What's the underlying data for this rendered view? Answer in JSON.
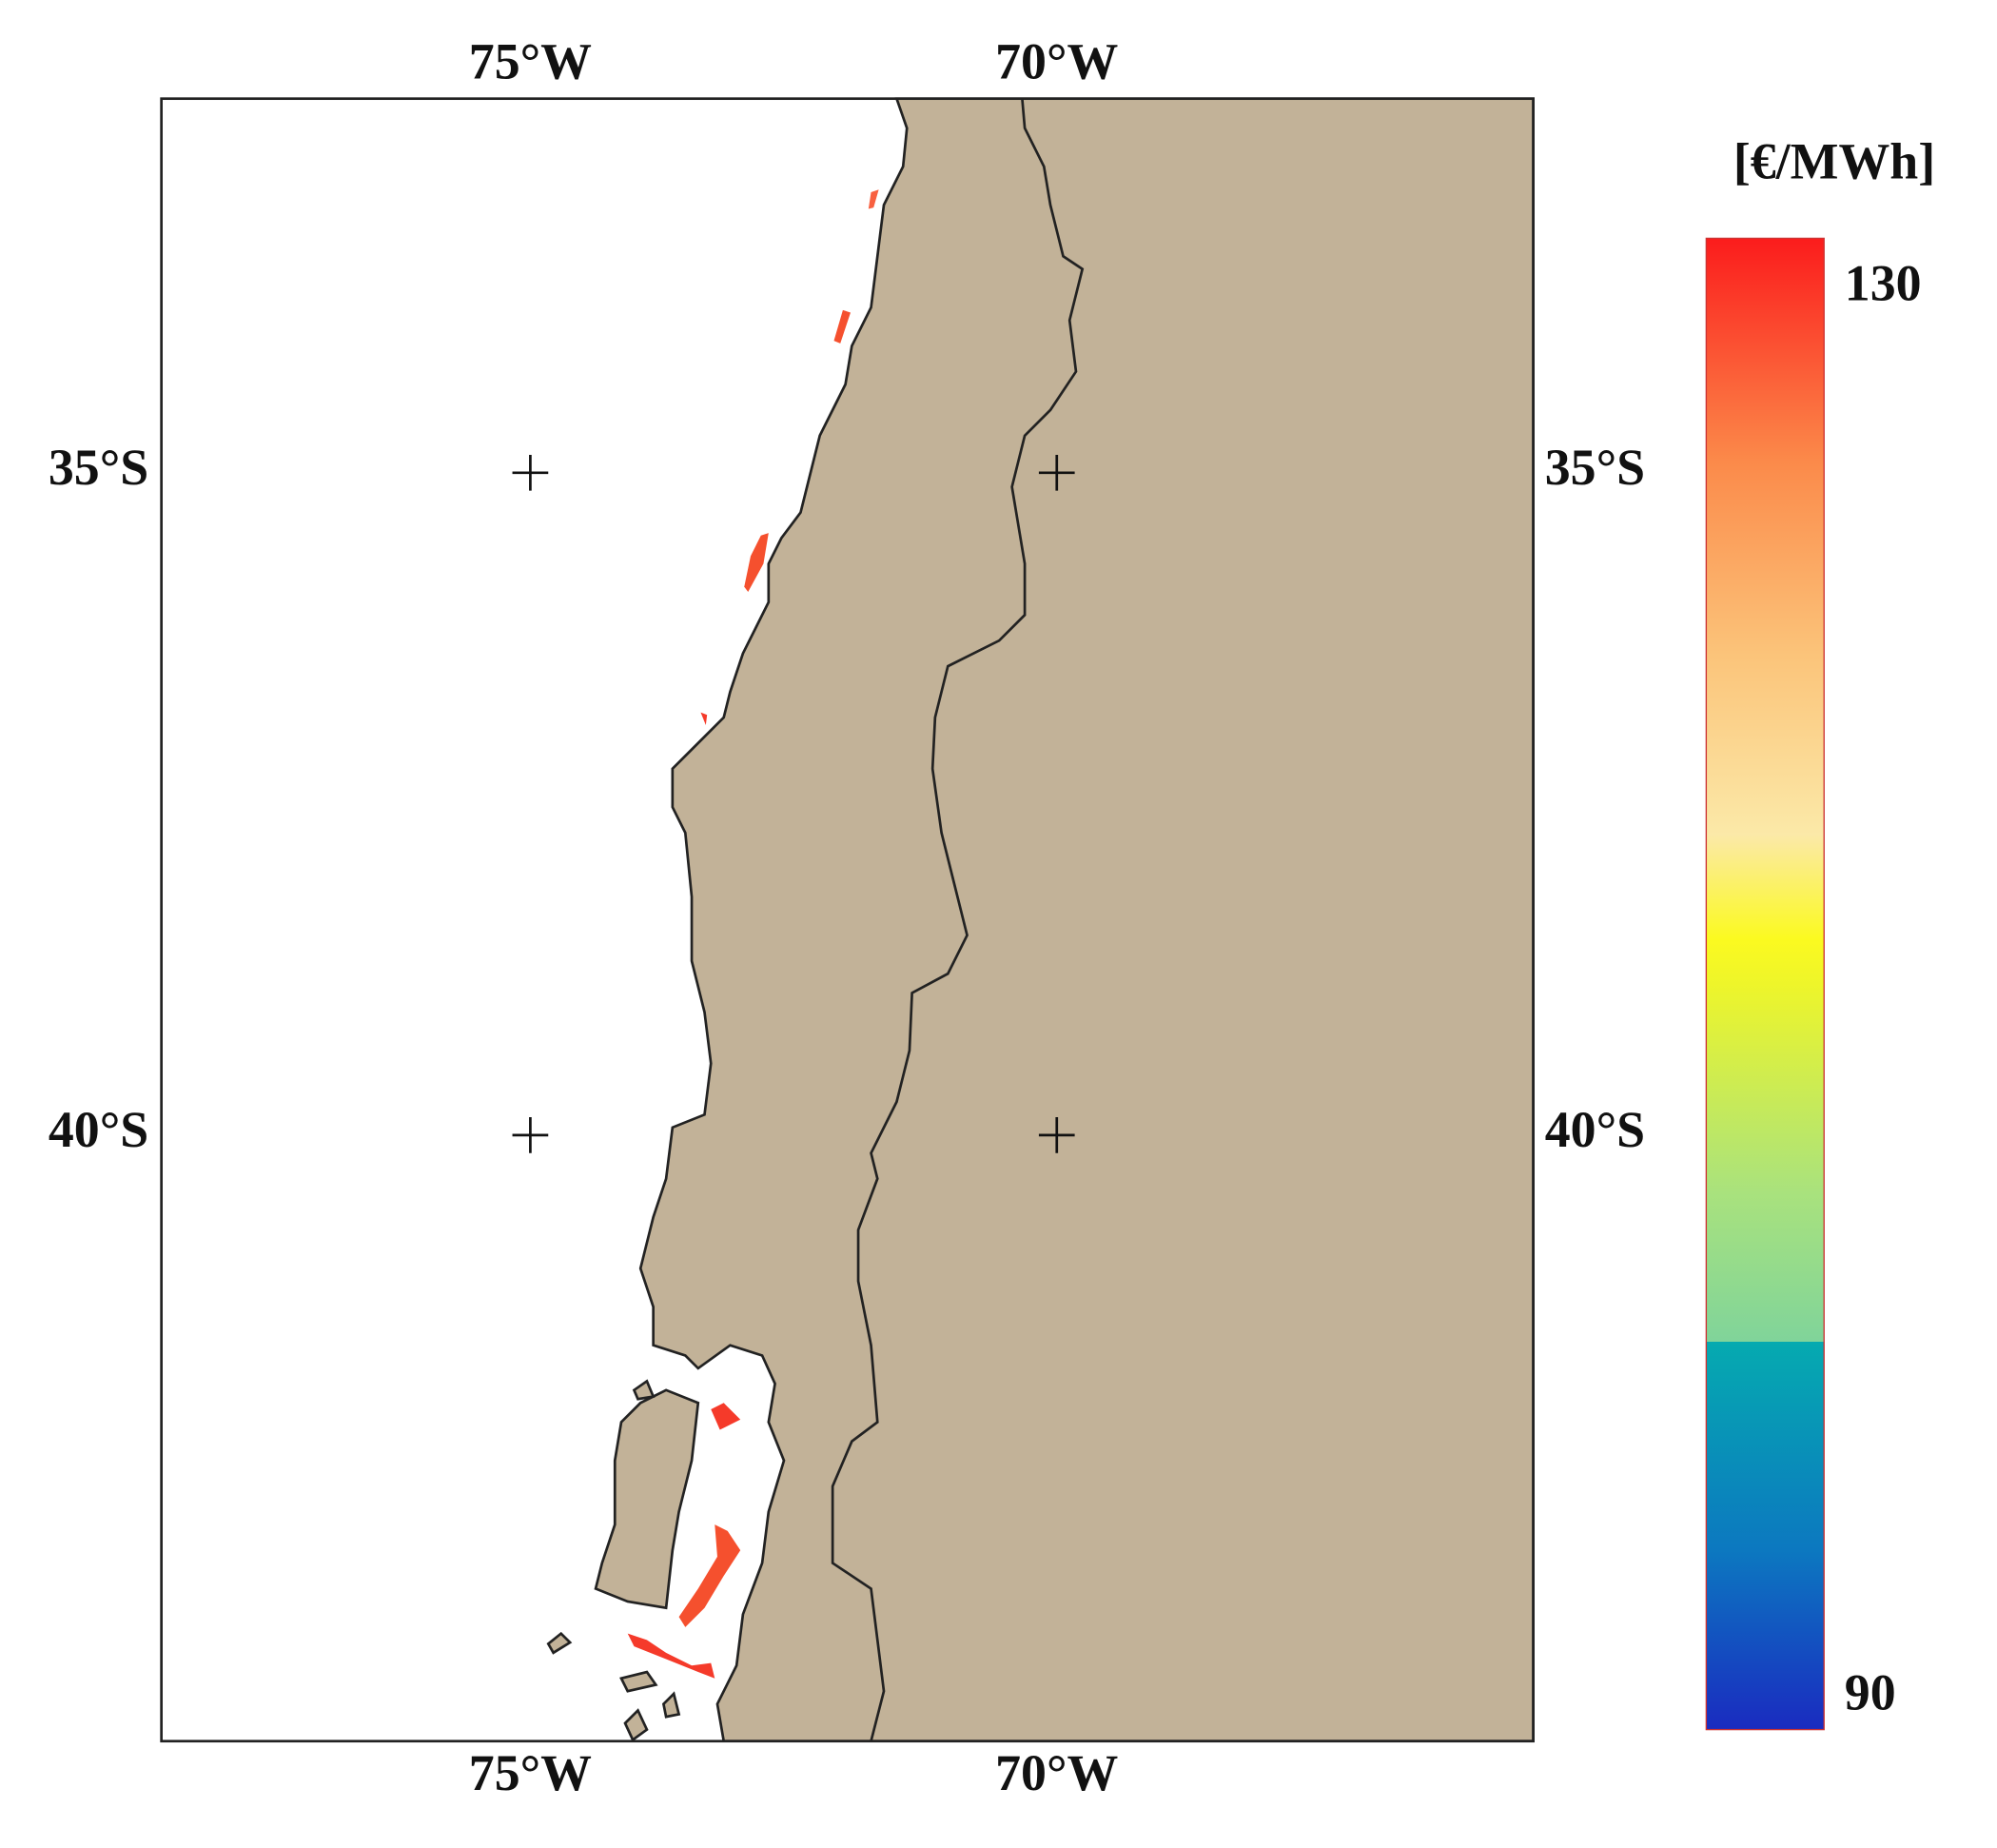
{
  "map": {
    "x_labels": [
      "75°W",
      "70°W"
    ],
    "y_labels": [
      "35°S",
      "40°S"
    ]
  },
  "colorbar": {
    "title": "[€/MWh]",
    "lim": [
      90,
      130
    ],
    "ticks": [
      90,
      130
    ]
  }
}
